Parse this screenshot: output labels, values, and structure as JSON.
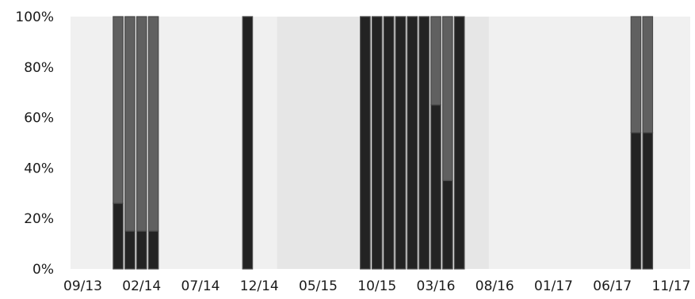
{
  "chart_data": {
    "type": "bar",
    "stacked": true,
    "title": "",
    "xlabel": "",
    "ylabel": "",
    "ylim": [
      0,
      100
    ],
    "y_ticks": [
      "0%",
      "20%",
      "40%",
      "60%",
      "80%",
      "100%"
    ],
    "y_tick_values": [
      0,
      20,
      40,
      60,
      80,
      100
    ],
    "x_ticks": [
      "09/13",
      "02/14",
      "07/14",
      "12/14",
      "05/15",
      "10/15",
      "03/16",
      "08/16",
      "01/17",
      "06/17",
      "11/17"
    ],
    "x_tick_months": [
      "2013-09",
      "2014-02",
      "2014-07",
      "2014-12",
      "2015-05",
      "2015-10",
      "2016-03",
      "2016-08",
      "2017-01",
      "2017-06",
      "2017-11"
    ],
    "highlight_ranges": [
      [
        "2015-02",
        "2016-07"
      ]
    ],
    "categories": [
      "2013-12",
      "2014-01",
      "2014-02",
      "2014-03",
      "2014-11",
      "2015-09",
      "2015-10",
      "2015-11",
      "2015-12",
      "2016-01",
      "2016-02",
      "2016-03",
      "2016-04",
      "2016-05",
      "2017-08",
      "2017-09"
    ],
    "series": [
      {
        "values": [
          26,
          15,
          15,
          15,
          100,
          100,
          100,
          100,
          100,
          100,
          100,
          65,
          35,
          100,
          54,
          54
        ]
      },
      {
        "values": [
          74,
          85,
          85,
          85,
          0,
          0,
          0,
          0,
          0,
          0,
          0,
          35,
          65,
          0,
          46,
          46
        ]
      }
    ],
    "colors": {
      "series_primary": "#232323",
      "series_secondary": "#606060",
      "bar_border": "#4a4a4a",
      "plot_background": "#f0f0f0",
      "highlight_band": "#e6e6e6",
      "text": "#1a1a1a"
    },
    "grid": false,
    "legend": "none"
  }
}
